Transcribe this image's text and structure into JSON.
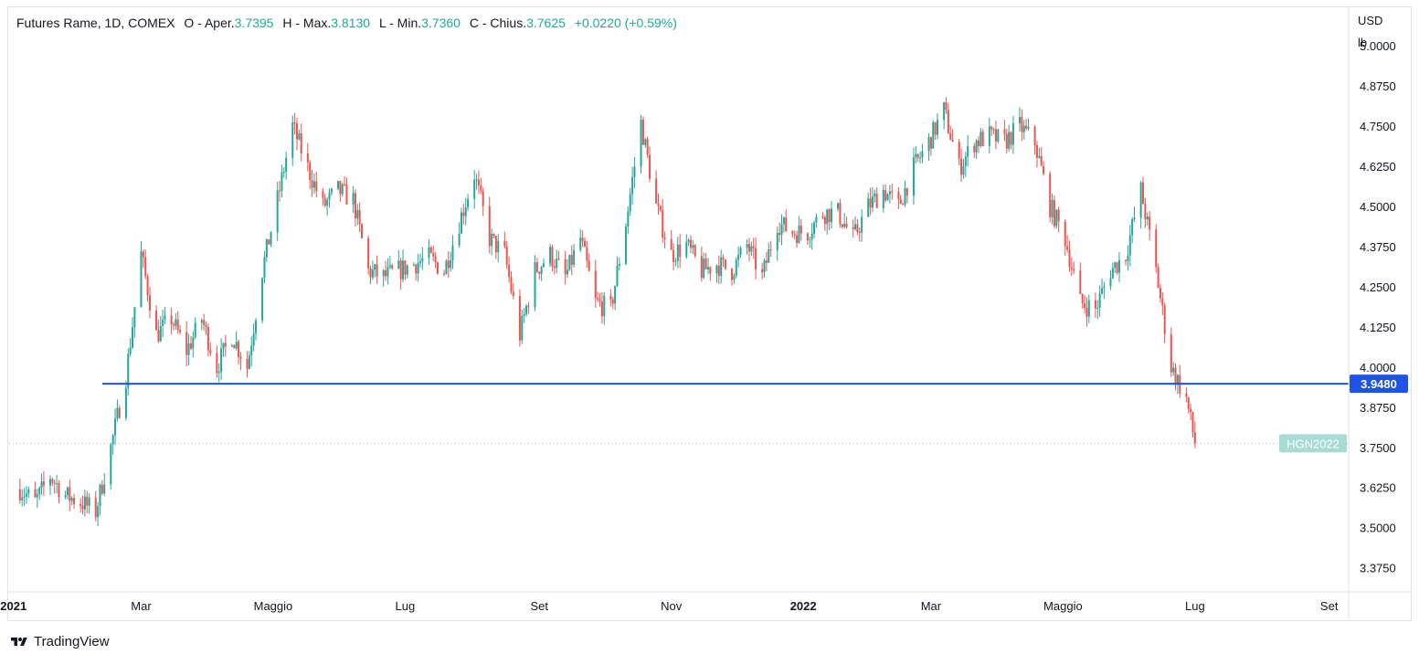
{
  "header": {
    "symbol": "Futures Rame, 1D, COMEX",
    "open_label": "O - Aper.",
    "open_value": "3.7395",
    "high_label": "H - Max.",
    "high_value": "3.8130",
    "low_label": "L - Min.",
    "low_value": "3.7360",
    "close_label": "C - Chius.",
    "close_value": "3.7625",
    "change": "+0.0220 (+0.59%)"
  },
  "footer": {
    "brand": "TradingView"
  },
  "colors": {
    "up": "#26a69a",
    "down": "#ef5350",
    "line": "#1e53e5",
    "axis_text": "#131722",
    "border": "#e0e3eb"
  },
  "chart_data": {
    "type": "candlestick",
    "unit_top": "USD",
    "unit_bottom": "lb",
    "y_ticks": [
      "5.0000",
      "4.8750",
      "4.7500",
      "4.6250",
      "4.5000",
      "4.3750",
      "4.2500",
      "4.1250",
      "4.0000",
      "3.8750",
      "3.7500",
      "3.6250",
      "3.5000",
      "3.3750"
    ],
    "ylim": [
      3.3,
      5.12
    ],
    "x_ticks": [
      {
        "label": "2021",
        "date": "2021-01-01",
        "bold": true
      },
      {
        "label": "Mar",
        "date": "2021-03-01",
        "bold": false
      },
      {
        "label": "Maggio",
        "date": "2021-05-01",
        "bold": false
      },
      {
        "label": "Lug",
        "date": "2021-07-01",
        "bold": false
      },
      {
        "label": "Set",
        "date": "2021-09-01",
        "bold": false
      },
      {
        "label": "Nov",
        "date": "2021-11-01",
        "bold": false
      },
      {
        "label": "2022",
        "date": "2022-01-01",
        "bold": true
      },
      {
        "label": "Mar",
        "date": "2022-03-01",
        "bold": false
      },
      {
        "label": "Maggio",
        "date": "2022-05-01",
        "bold": false
      },
      {
        "label": "Lug",
        "date": "2022-07-01",
        "bold": false
      },
      {
        "label": "Set",
        "date": "2022-09-01",
        "bold": false
      }
    ],
    "date_range": [
      "2020-12-30",
      "2022-09-10"
    ],
    "horizontal_line": {
      "value": 3.948,
      "label": "3.9480"
    },
    "last_price_badge": "HGN2022",
    "last_close": 3.7625,
    "series_name": "Futures Rame",
    "grid": false,
    "path": [
      [
        "2021-01-04",
        3.62
      ],
      [
        "2021-01-11",
        3.58
      ],
      [
        "2021-01-18",
        3.66
      ],
      [
        "2021-01-25",
        3.6
      ],
      [
        "2021-02-01",
        3.58
      ],
      [
        "2021-02-08",
        3.55
      ],
      [
        "2021-02-15",
        3.75
      ],
      [
        "2021-02-22",
        3.97
      ],
      [
        "2021-03-01",
        4.35
      ],
      [
        "2021-03-08",
        4.1
      ],
      [
        "2021-03-15",
        4.15
      ],
      [
        "2021-03-22",
        4.05
      ],
      [
        "2021-03-29",
        4.15
      ],
      [
        "2021-04-05",
        4.0
      ],
      [
        "2021-04-12",
        4.1
      ],
      [
        "2021-04-19",
        4.0
      ],
      [
        "2021-04-26",
        4.3
      ],
      [
        "2021-05-03",
        4.52
      ],
      [
        "2021-05-10",
        4.75
      ],
      [
        "2021-05-17",
        4.62
      ],
      [
        "2021-05-24",
        4.5
      ],
      [
        "2021-05-31",
        4.55
      ],
      [
        "2021-06-07",
        4.52
      ],
      [
        "2021-06-14",
        4.3
      ],
      [
        "2021-06-21",
        4.28
      ],
      [
        "2021-06-28",
        4.3
      ],
      [
        "2021-07-05",
        4.32
      ],
      [
        "2021-07-12",
        4.34
      ],
      [
        "2021-07-19",
        4.3
      ],
      [
        "2021-07-26",
        4.45
      ],
      [
        "2021-08-02",
        4.6
      ],
      [
        "2021-08-09",
        4.4
      ],
      [
        "2021-08-16",
        4.35
      ],
      [
        "2021-08-23",
        4.1
      ],
      [
        "2021-08-30",
        4.3
      ],
      [
        "2021-09-06",
        4.35
      ],
      [
        "2021-09-13",
        4.28
      ],
      [
        "2021-09-20",
        4.4
      ],
      [
        "2021-09-27",
        4.2
      ],
      [
        "2021-10-04",
        4.18
      ],
      [
        "2021-10-11",
        4.45
      ],
      [
        "2021-10-18",
        4.76
      ],
      [
        "2021-10-25",
        4.5
      ],
      [
        "2021-11-01",
        4.35
      ],
      [
        "2021-11-08",
        4.38
      ],
      [
        "2021-11-15",
        4.3
      ],
      [
        "2021-11-22",
        4.32
      ],
      [
        "2021-11-29",
        4.3
      ],
      [
        "2021-12-06",
        4.38
      ],
      [
        "2021-12-13",
        4.28
      ],
      [
        "2021-12-20",
        4.45
      ],
      [
        "2021-12-27",
        4.42
      ],
      [
        "2022-01-03",
        4.42
      ],
      [
        "2022-01-10",
        4.48
      ],
      [
        "2022-01-17",
        4.48
      ],
      [
        "2022-01-24",
        4.4
      ],
      [
        "2022-01-31",
        4.5
      ],
      [
        "2022-02-07",
        4.55
      ],
      [
        "2022-02-14",
        4.5
      ],
      [
        "2022-02-21",
        4.62
      ],
      [
        "2022-02-28",
        4.7
      ],
      [
        "2022-03-07",
        4.8
      ],
      [
        "2022-03-14",
        4.62
      ],
      [
        "2022-03-21",
        4.7
      ],
      [
        "2022-03-28",
        4.72
      ],
      [
        "2022-04-04",
        4.7
      ],
      [
        "2022-04-11",
        4.75
      ],
      [
        "2022-04-18",
        4.7
      ],
      [
        "2022-04-25",
        4.5
      ],
      [
        "2022-05-02",
        4.4
      ],
      [
        "2022-05-09",
        4.2
      ],
      [
        "2022-05-16",
        4.18
      ],
      [
        "2022-05-23",
        4.3
      ],
      [
        "2022-05-30",
        4.35
      ],
      [
        "2022-06-06",
        4.55
      ],
      [
        "2022-06-13",
        4.3
      ],
      [
        "2022-06-20",
        4.0
      ],
      [
        "2022-06-27",
        3.9
      ],
      [
        "2022-07-01",
        3.7625
      ]
    ]
  }
}
